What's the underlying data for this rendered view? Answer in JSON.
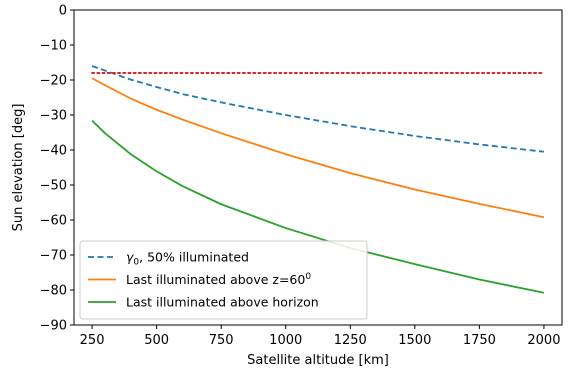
{
  "chart_data": {
    "type": "line",
    "title": "",
    "xlabel": "Satellite altitude [km]",
    "ylabel": "Sun elevation [deg]",
    "xlim": [
      180,
      2070
    ],
    "ylim": [
      -90,
      0
    ],
    "xticks": [
      250,
      500,
      750,
      1000,
      1250,
      1500,
      1750,
      2000
    ],
    "yticks": [
      0,
      -10,
      -20,
      -30,
      -40,
      -50,
      -60,
      -70,
      -80,
      -90
    ],
    "xtick_labels": [
      "250",
      "500",
      "750",
      "1000",
      "1250",
      "1500",
      "1750",
      "2000"
    ],
    "ytick_labels": [
      "0",
      "−10",
      "−20",
      "−30",
      "−40",
      "−50",
      "−60",
      "−70",
      "−80",
      "−90"
    ],
    "grid": false,
    "legend_position": "lower-left",
    "series": [
      {
        "name": "γ₀, 50% illuminated",
        "legend_main": "γ",
        "legend_sub": "0",
        "legend_rest": ", 50% illuminated",
        "color": "#1f77b4",
        "style": "dashed",
        "x": [
          250,
          300,
          400,
          500,
          600,
          750,
          1000,
          1250,
          1500,
          1750,
          2000
        ],
        "y": [
          -16.0,
          -17.3,
          -19.9,
          -22.0,
          -24.0,
          -26.4,
          -30.0,
          -33.2,
          -36.0,
          -38.4,
          -40.5
        ]
      },
      {
        "name": "Last illuminated above z=60⁰",
        "legend_text": "Last illuminated above z=60",
        "legend_sup": "0",
        "color": "#ff7f0e",
        "style": "solid",
        "x": [
          250,
          300,
          400,
          500,
          600,
          750,
          1000,
          1250,
          1500,
          1750,
          2000
        ],
        "y": [
          -19.5,
          -21.5,
          -25.3,
          -28.5,
          -31.3,
          -35.2,
          -41.2,
          -46.6,
          -51.3,
          -55.4,
          -59.2
        ]
      },
      {
        "name": "Last illuminated above horizon",
        "legend_text": "Last illuminated above horizon",
        "color": "#2ca02c",
        "style": "solid",
        "x": [
          250,
          300,
          400,
          500,
          600,
          750,
          1000,
          1250,
          1500,
          1750,
          2000
        ],
        "y": [
          -31.6,
          -35.2,
          -41.2,
          -46.1,
          -50.3,
          -55.5,
          -62.3,
          -68.0,
          -72.6,
          -77.0,
          -80.8
        ]
      },
      {
        "color": "#d62728",
        "style": "dotted",
        "x": [
          250,
          2000
        ],
        "y": [
          -18,
          -18
        ]
      }
    ]
  }
}
